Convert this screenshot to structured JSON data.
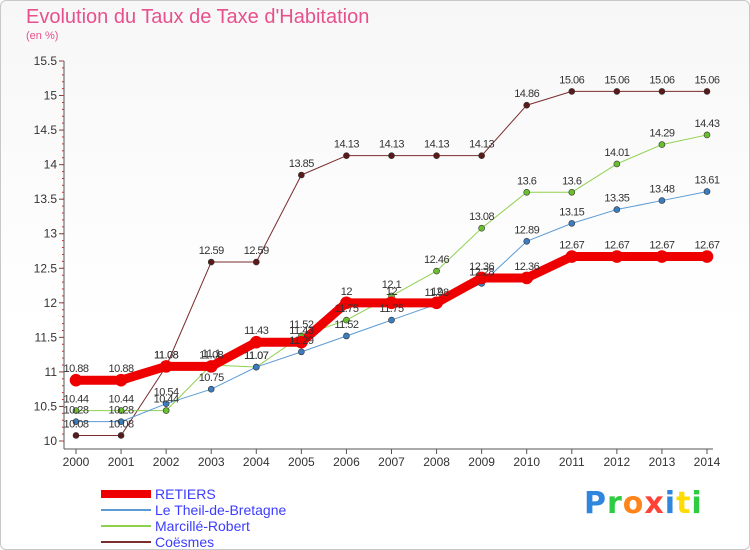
{
  "page": {
    "title": "Evolution du Taux de Taxe d'Habitation",
    "subtitle": "(en %)"
  },
  "brand": {
    "text": "Proxiti",
    "colors": [
      "#2e86de",
      "#2ecc40",
      "#ff851b",
      "#ff4136",
      "#2e86de",
      "#ffdc00",
      "#2ecc40"
    ]
  },
  "legend": {
    "items": [
      {
        "label": "RETIERS",
        "color": "#ee0000",
        "thick": true
      },
      {
        "label": "Le Theil-de-Bretagne",
        "color": "#5b9bd5",
        "thick": false
      },
      {
        "label": "Marcillé-Robert",
        "color": "#8fd14f",
        "thick": false
      },
      {
        "label": "Coësmes",
        "color": "#7b2c2c",
        "thick": false
      }
    ]
  },
  "chart_data": {
    "type": "line",
    "x": [
      "2000",
      "2001",
      "2002",
      "2003",
      "2004",
      "2005",
      "2006",
      "2007",
      "2008",
      "2009",
      "2010",
      "2011",
      "2012",
      "2013",
      "2014"
    ],
    "ylim": [
      10,
      15.5
    ],
    "yticks": [
      "10",
      "10.5",
      "11",
      "11.5",
      "12",
      "12.5",
      "13",
      "13.5",
      "14",
      "14.5",
      "15",
      "15.5"
    ],
    "grid": false,
    "legend_position": "bottom-left",
    "series": [
      {
        "name": "Coësmes",
        "color": "#7b2c2c",
        "point_color": "#5a1a1a",
        "width": 1,
        "values": [
          10.08,
          10.08,
          11.08,
          12.59,
          12.59,
          13.85,
          14.13,
          14.13,
          14.13,
          14.13,
          14.86,
          15.06,
          15.06,
          15.06,
          15.06
        ],
        "labels": [
          "10.08",
          "10.08",
          "11.08",
          "12.59",
          "12.59",
          "13.85",
          "14.13",
          "14.13",
          "14.13",
          "14.13",
          "14.86",
          "15.06",
          "15.06",
          "15.06",
          "15.06"
        ]
      },
      {
        "name": "Marcillé-Robert",
        "color": "#8fd14f",
        "point_color": "#6abf2e",
        "width": 1,
        "values": [
          10.44,
          10.44,
          10.44,
          11.1,
          11.07,
          11.52,
          11.75,
          12.1,
          12.46,
          13.08,
          13.6,
          13.6,
          14.01,
          14.29,
          14.43
        ],
        "labels": [
          "10.44",
          "10.44",
          "10.44",
          "11.1",
          "11.07",
          "11.52",
          "11.75",
          "12.1",
          "12.46",
          "13.08",
          "13.6",
          "13.6",
          "14.01",
          "14.29",
          "14.43"
        ]
      },
      {
        "name": "Le Theil-de-Bretagne",
        "color": "#5b9bd5",
        "point_color": "#3a7dc0",
        "width": 1,
        "values": [
          10.28,
          10.28,
          10.54,
          10.75,
          11.07,
          11.29,
          11.52,
          11.75,
          11.98,
          12.28,
          12.89,
          13.15,
          13.35,
          13.48,
          13.61
        ],
        "labels": [
          "10.28",
          "10.28",
          "10.54",
          "10.75",
          "11.07",
          "11.29",
          "11.52",
          "11.75",
          "11.98",
          "12.28",
          "12.89",
          "13.15",
          "13.35",
          "13.48",
          "13.61"
        ]
      },
      {
        "name": "RETIERS",
        "color": "#ee0000",
        "point_color": "#ee0000",
        "width": 9,
        "values": [
          10.88,
          10.88,
          11.08,
          11.08,
          11.43,
          11.43,
          12,
          12,
          12,
          12.36,
          12.36,
          12.67,
          12.67,
          12.67,
          12.67
        ],
        "labels": [
          "10.88",
          "10.88",
          "11.08",
          "11.08",
          "11.43",
          "11.43",
          "12",
          "12",
          "12",
          "12.36",
          "12.36",
          "12.67",
          "12.67",
          "12.67",
          "12.67"
        ]
      }
    ]
  }
}
